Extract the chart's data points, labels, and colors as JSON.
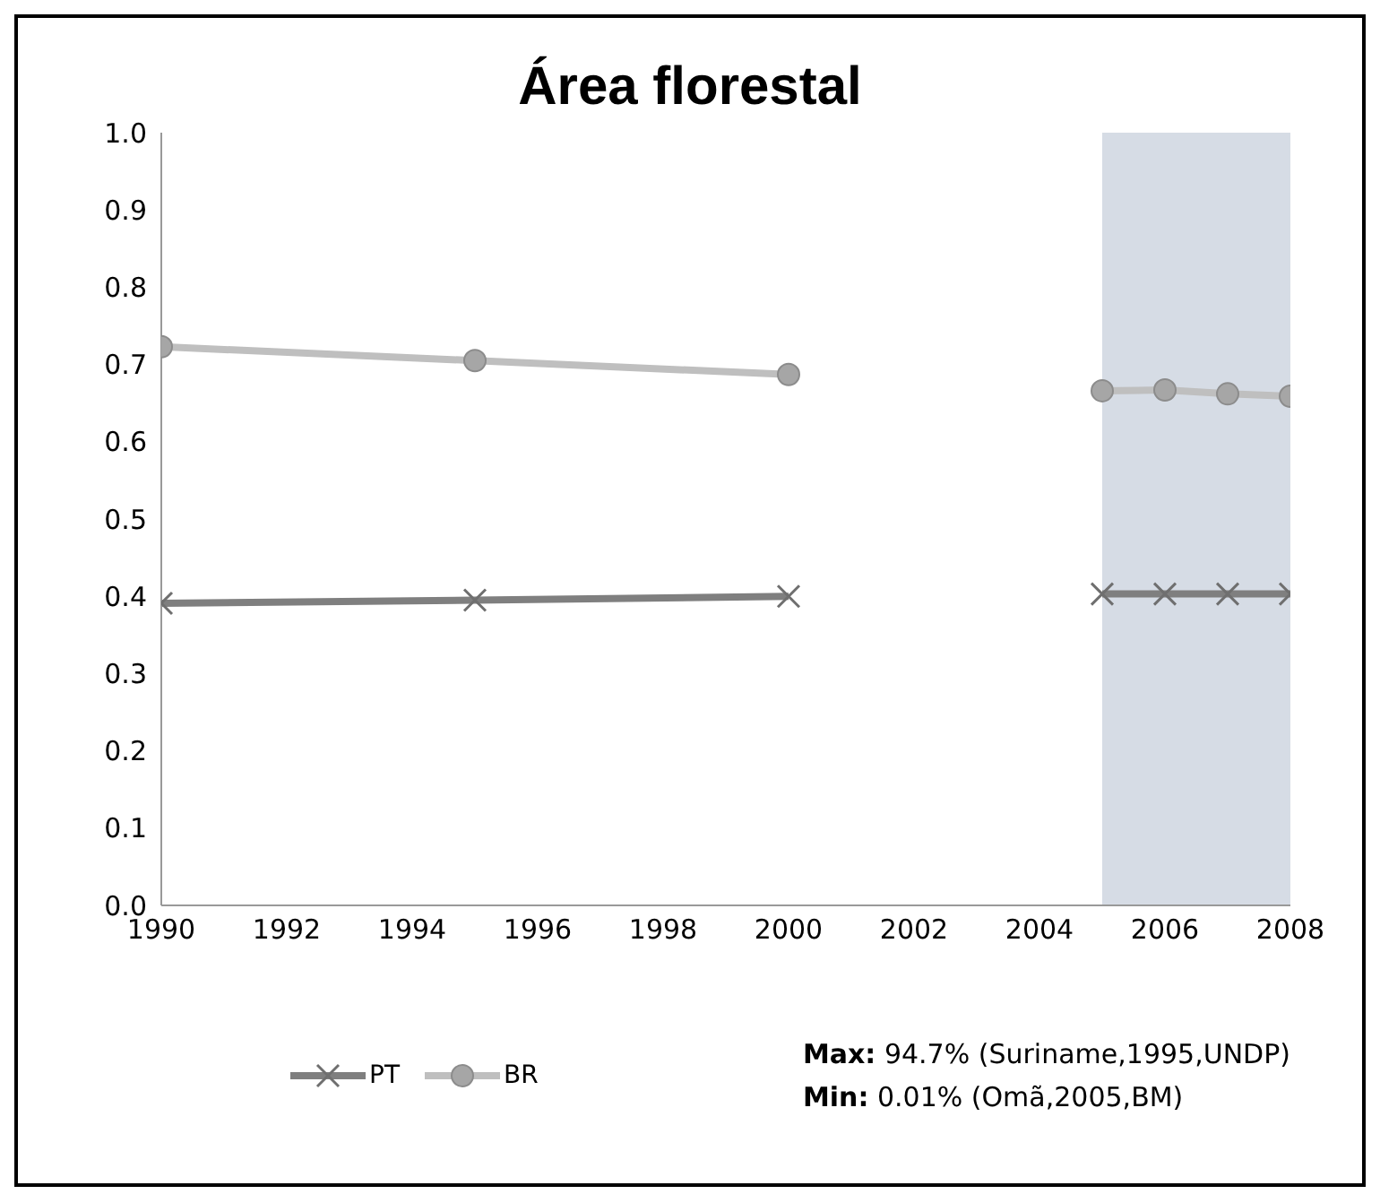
{
  "chart_data": {
    "type": "line",
    "title": "Área florestal",
    "x": [
      1990,
      1995,
      2000,
      2002,
      2005,
      2006,
      2007,
      2008
    ],
    "series": [
      {
        "name": "PT",
        "color": "#7f7f7f",
        "marker": "cross",
        "values": [
          0.391,
          0.395,
          0.4,
          null,
          0.403,
          0.403,
          0.403,
          0.403
        ]
      },
      {
        "name": "BR",
        "color": "#bfbfbf",
        "marker": "circle",
        "values": [
          0.723,
          0.705,
          0.687,
          null,
          0.666,
          0.667,
          0.662,
          0.659
        ]
      }
    ],
    "xlim": [
      1990,
      2008
    ],
    "xticks": [
      1990,
      1992,
      1994,
      1996,
      1998,
      2000,
      2002,
      2004,
      2006,
      2008
    ],
    "ylim": [
      0,
      1
    ],
    "yticks": [
      {
        "value": 0,
        "label": "0.0"
      },
      {
        "value": 0.1,
        "label": "0.1"
      },
      {
        "value": 0.2,
        "label": "0.2"
      },
      {
        "value": 0.3,
        "label": "0.3"
      },
      {
        "value": 0.4,
        "label": "0.4"
      },
      {
        "value": 0.5,
        "label": "0.5"
      },
      {
        "value": 0.6,
        "label": "0.6"
      },
      {
        "value": 0.7,
        "label": "0.7"
      },
      {
        "value": 0.8,
        "label": "0.8"
      },
      {
        "value": 0.9,
        "label": "0.9"
      },
      {
        "value": 1,
        "label": "1.0"
      }
    ],
    "bands": [
      {
        "axis": "x",
        "from": 2005,
        "to": 2008,
        "color": "#d6dce5"
      }
    ],
    "grid": false,
    "legend": "bottom left",
    "annotations": [
      "Max: 94.7% (Suriname,1995,UNDP)",
      "Min: 0.01% (Omã,2005,BM)"
    ]
  }
}
